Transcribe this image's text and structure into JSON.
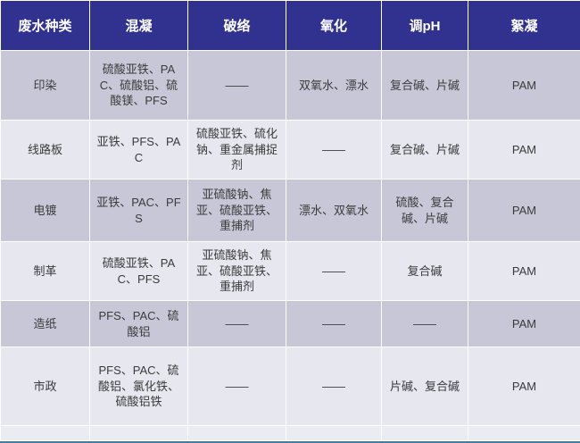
{
  "table": {
    "title": "wastewater-treatment-chemicals-table",
    "headers": [
      "废水种类",
      "混凝",
      "破络",
      "氧化",
      "调pH",
      "絮凝"
    ],
    "rows": [
      [
        "印染",
        "硫酸亚铁、PAC、硫酸铝、硫酸镁、PFS",
        "——",
        "双氧水、漂水",
        "复合碱、片碱",
        "PAM"
      ],
      [
        "线路板",
        "亚铁、PFS、PAC",
        "硫酸亚铁、硫化钠、重金属捕捉剂",
        "——",
        "复合碱、片碱",
        "PAM"
      ],
      [
        "电镀",
        "亚铁、PAC、PFS",
        "亚硫酸钠、焦亚、硫酸亚铁、重捕剂",
        "漂水、双氧水",
        "硫酸、复合碱、片碱",
        "PAM"
      ],
      [
        "制革",
        "硫酸亚铁、PAC、PFS",
        "亚硫酸钠、焦亚、硫酸亚铁、重捕剂",
        "——",
        "复合碱",
        "PAM"
      ],
      [
        "造纸",
        "PFS、PAC、硫酸铝",
        "——",
        "——",
        "——",
        "PAM"
      ],
      [
        "市政",
        "PFS、PAC、硫酸铝、氯化铁、硫酸铝铁",
        "——",
        "——",
        "片碱、复合碱",
        "PAM"
      ]
    ]
  },
  "colors": {
    "header_bg": "#31318f",
    "header_text": "#ffffff",
    "row_dark": "#c8c7d8",
    "row_light": "#e7e7ef",
    "row_empty": "#ebebf2",
    "body_text": "#3b3b3b",
    "grid": "#ffffff",
    "bottom_line": "#4b7d98"
  }
}
